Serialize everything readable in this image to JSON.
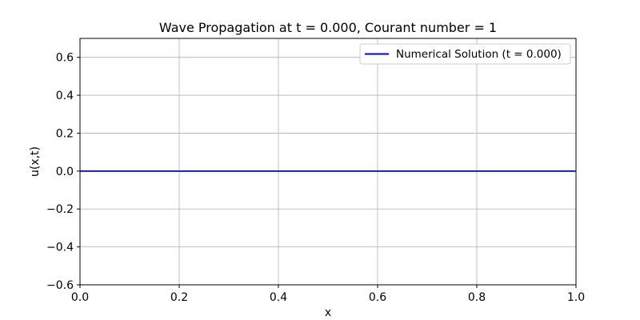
{
  "chart_data": {
    "type": "line",
    "title": "Wave Propagation at t = 0.000, Courant number = 1",
    "xlabel": "x",
    "ylabel": "u(x,t)",
    "xlim": [
      0.0,
      1.0
    ],
    "ylim": [
      -0.6,
      0.7
    ],
    "xticks": [
      0.0,
      0.2,
      0.4,
      0.6,
      0.8,
      1.0
    ],
    "xtick_labels": [
      "0.0",
      "0.2",
      "0.4",
      "0.6",
      "0.8",
      "1.0"
    ],
    "yticks": [
      -0.6,
      -0.4,
      -0.2,
      0.0,
      0.2,
      0.4,
      0.6
    ],
    "ytick_labels": [
      "−0.6",
      "−0.4",
      "−0.2",
      "0.0",
      "0.2",
      "0.4",
      "0.6"
    ],
    "grid": true,
    "legend_position": "upper right",
    "series": [
      {
        "name": "Numerical Solution (t = 0.000)",
        "color": "#0000cc",
        "x": [
          0.0,
          0.1,
          0.2,
          0.3,
          0.4,
          0.5,
          0.6,
          0.7,
          0.8,
          0.9,
          1.0
        ],
        "y": [
          0.0,
          0.0,
          0.0,
          0.0,
          0.0,
          0.0,
          0.0,
          0.0,
          0.0,
          0.0,
          0.0
        ]
      }
    ]
  }
}
